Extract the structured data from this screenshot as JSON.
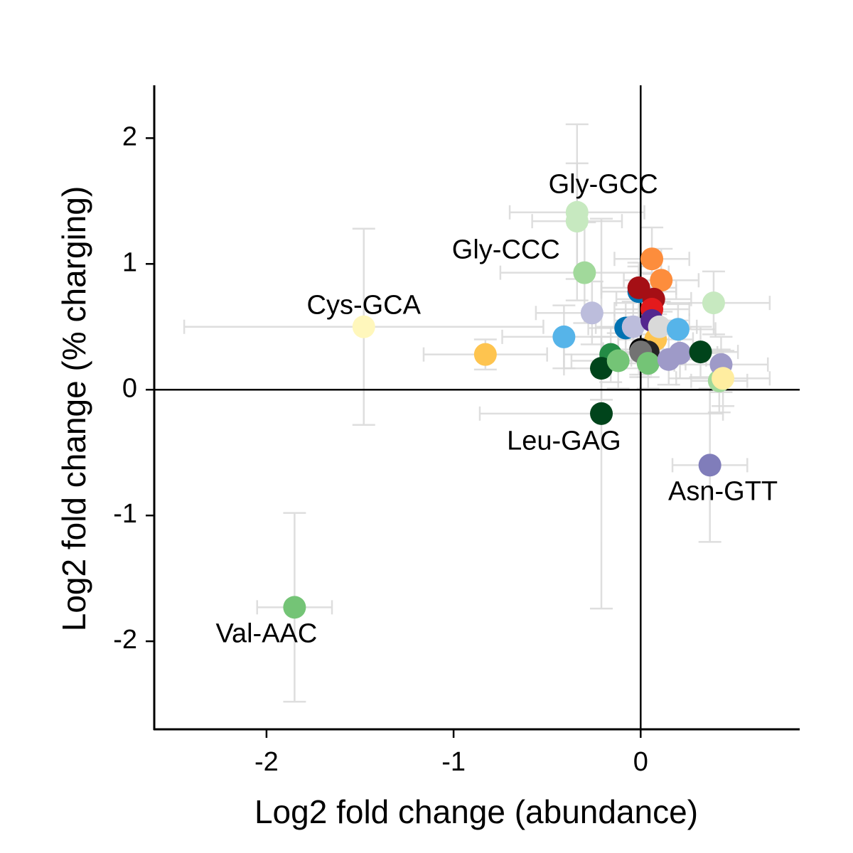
{
  "chart_data": {
    "type": "scatter",
    "title": "",
    "xlabel": "Log2 fold change (abundance)",
    "ylabel": "Log2 fold change (% charging)",
    "xlim": [
      -2.6,
      0.85
    ],
    "ylim": [
      -2.7,
      2.42
    ],
    "xticks": [
      -2,
      -1,
      0
    ],
    "yticks": [
      -2,
      -1,
      0,
      1,
      2
    ],
    "xtick_labels": [
      "-2",
      "-1",
      "0"
    ],
    "ytick_labels": [
      "-2",
      "-1",
      "0",
      "1",
      "2"
    ],
    "reference_lines": {
      "x": 0,
      "y": 0
    },
    "grid": false,
    "error_bar_color": "#d9d9d9",
    "points": [
      {
        "x": 0.42,
        "y": 0.07,
        "xerr": 0.15,
        "yerr": 0.25,
        "color": "#a1d99b"
      },
      {
        "x": -0.34,
        "y": 1.41,
        "xerr": 0.36,
        "yerr": 0.7,
        "color": "#c7e9c0"
      },
      {
        "x": -0.34,
        "y": 1.34,
        "xerr": 0.24,
        "yerr": 0.46,
        "color": "#c7e9c0"
      },
      {
        "x": -0.3,
        "y": 0.93,
        "xerr": 0.45,
        "yerr": 0.4,
        "color": "#a1d99b"
      },
      {
        "x": -1.48,
        "y": 0.5,
        "xerr": 0.96,
        "yerr": 0.78,
        "color": "#fff7bc"
      },
      {
        "x": -0.83,
        "y": 0.28,
        "xerr": 0.33,
        "yerr": 0.12,
        "color": "#fec44f"
      },
      {
        "x": -0.41,
        "y": 0.42,
        "xerr": 0.33,
        "yerr": 0.25,
        "color": "#56b4e9"
      },
      {
        "x": -0.26,
        "y": 0.61,
        "xerr": 0.3,
        "yerr": 0.25,
        "color": "#bcbddc"
      },
      {
        "x": -0.16,
        "y": 0.28,
        "xerr": 0.25,
        "yerr": 0.22,
        "color": "#238b45"
      },
      {
        "x": -0.21,
        "y": 0.17,
        "xerr": 0.2,
        "yerr": 0.25,
        "color": "#00441b"
      },
      {
        "x": -0.12,
        "y": 0.23,
        "xerr": 0.25,
        "yerr": 0.22,
        "color": "#74c476"
      },
      {
        "x": -0.21,
        "y": -0.19,
        "xerr": 0.65,
        "yerr": 1.55,
        "color": "#00441b"
      },
      {
        "x": -0.08,
        "y": 0.49,
        "xerr": 0.2,
        "yerr": 0.2,
        "color": "#0072b2"
      },
      {
        "x": -0.04,
        "y": 0.5,
        "xerr": 0.2,
        "yerr": 0.2,
        "color": "#bcbddc"
      },
      {
        "x": -0.01,
        "y": 0.78,
        "xerr": 0.2,
        "yerr": 0.2,
        "color": "#0072b2"
      },
      {
        "x": -0.01,
        "y": 0.81,
        "xerr": 0.2,
        "yerr": 0.2,
        "color": "#a50f15"
      },
      {
        "x": 0.06,
        "y": 1.04,
        "xerr": 0.2,
        "yerr": 0.25,
        "color": "#fd8d3c"
      },
      {
        "x": 0.11,
        "y": 0.87,
        "xerr": 0.2,
        "yerr": 0.25,
        "color": "#fd8d3c"
      },
      {
        "x": 0.07,
        "y": 0.72,
        "xerr": 0.2,
        "yerr": 0.2,
        "color": "#a50f15"
      },
      {
        "x": 0.06,
        "y": 0.64,
        "xerr": 0.2,
        "yerr": 0.2,
        "color": "#e31a1c"
      },
      {
        "x": 0.06,
        "y": 0.55,
        "xerr": 0.2,
        "yerr": 0.2,
        "color": "#54278f"
      },
      {
        "x": 0.08,
        "y": 0.4,
        "xerr": 0.2,
        "yerr": 0.2,
        "color": "#fec44f"
      },
      {
        "x": 0.0,
        "y": 0.32,
        "xerr": 0.2,
        "yerr": 0.2,
        "color": "#000000"
      },
      {
        "x": 0.04,
        "y": 0.3,
        "xerr": 0.2,
        "yerr": 0.2,
        "color": "#252525"
      },
      {
        "x": 0.0,
        "y": 0.3,
        "xerr": 0.2,
        "yerr": 0.2,
        "color": "#737373"
      },
      {
        "x": 0.04,
        "y": 0.21,
        "xerr": 0.2,
        "yerr": 0.2,
        "color": "#74c476"
      },
      {
        "x": 0.1,
        "y": 0.5,
        "xerr": 0.2,
        "yerr": 0.2,
        "color": "#d9d9d9"
      },
      {
        "x": 0.2,
        "y": 0.48,
        "xerr": 0.2,
        "yerr": 0.2,
        "color": "#56b4e9"
      },
      {
        "x": 0.15,
        "y": 0.24,
        "xerr": 0.2,
        "yerr": 0.2,
        "color": "#9e9ac8"
      },
      {
        "x": 0.21,
        "y": 0.29,
        "xerr": 0.2,
        "yerr": 0.2,
        "color": "#9e9ac8"
      },
      {
        "x": 0.32,
        "y": 0.3,
        "xerr": 0.2,
        "yerr": 0.2,
        "color": "#00441b"
      },
      {
        "x": 0.39,
        "y": 0.69,
        "xerr": 0.3,
        "yerr": 0.25,
        "color": "#c7e9c0"
      },
      {
        "x": 0.43,
        "y": 0.2,
        "xerr": 0.25,
        "yerr": 0.22,
        "color": "#9e9ac8"
      },
      {
        "x": 0.44,
        "y": 0.09,
        "xerr": 0.25,
        "yerr": 0.22,
        "color": "#ffeda0"
      },
      {
        "x": 0.37,
        "y": -0.6,
        "xerr": 0.2,
        "yerr": 0.61,
        "color": "#807dba"
      },
      {
        "x": -1.85,
        "y": -1.73,
        "xerr": 0.2,
        "yerr": 0.75,
        "color": "#74c476"
      }
    ],
    "annotations": [
      {
        "label": "Gly-GCC",
        "x": -0.2,
        "y": 1.62
      },
      {
        "label": "Gly-CCC",
        "x": -0.72,
        "y": 1.1
      },
      {
        "label": "Cys-GCA",
        "x": -1.48,
        "y": 0.66
      },
      {
        "label": "Leu-GAG",
        "x": -0.41,
        "y": -0.42
      },
      {
        "label": "Asn-GTT",
        "x": 0.44,
        "y": -0.82
      },
      {
        "label": "Val-AAC",
        "x": -2.0,
        "y": -1.95
      }
    ]
  }
}
